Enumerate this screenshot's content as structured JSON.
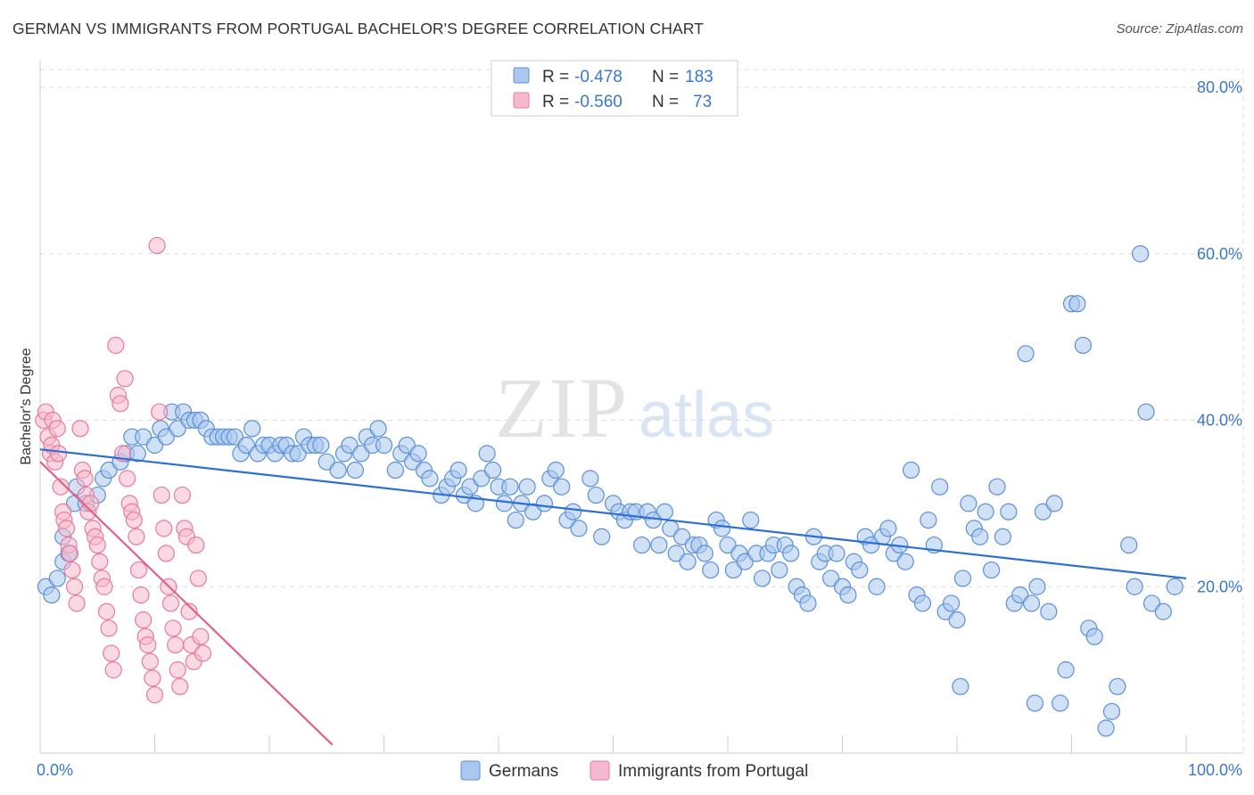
{
  "title": "GERMAN VS IMMIGRANTS FROM PORTUGAL BACHELOR'S DEGREE CORRELATION CHART",
  "source": "Source: ZipAtlas.com",
  "watermark": {
    "zip": "ZIP",
    "atlas": "atlas"
  },
  "colors": {
    "blue": "#5b8fd6",
    "blue_fill": "#aac8ee",
    "blue_line": "#2e6fd1",
    "pink": "#e8799d",
    "pink_fill": "#f6b9cc",
    "pink_line": "#e0608a",
    "axis_label": "#3a78c9",
    "grid": "#dddddd",
    "text": "#333333"
  },
  "legend_top": [
    {
      "r_label": "R =",
      "r_value": "-0.478",
      "n_label": "N =",
      "n_value": "183",
      "series": "blue"
    },
    {
      "r_label": "R =",
      "r_value": "-0.560",
      "n_label": "N =",
      "n_value": "73",
      "series": "pink"
    }
  ],
  "legend_bottom": [
    {
      "label": "Germans",
      "series": "blue"
    },
    {
      "label": "Immigrants from Portugal",
      "series": "pink"
    }
  ],
  "chart_data": {
    "type": "scatter",
    "title": "GERMAN VS IMMIGRANTS FROM PORTUGAL BACHELOR'S DEGREE CORRELATION CHART",
    "xlabel": "",
    "ylabel": "Bachelor's Degree",
    "xlim": [
      0,
      100
    ],
    "ylim": [
      0,
      83
    ],
    "x_tick_labels": [
      {
        "value": 0,
        "label": "0.0%"
      },
      {
        "value": 100,
        "label": "100.0%"
      }
    ],
    "y_tick_labels": [
      {
        "value": 20,
        "label": "20.0%"
      },
      {
        "value": 40,
        "label": "40.0%"
      },
      {
        "value": 60,
        "label": "60.0%"
      },
      {
        "value": 80,
        "label": "80.0%"
      }
    ],
    "x_minor_ticks": [
      0,
      10,
      20,
      30,
      40,
      50,
      60,
      70,
      80,
      90,
      100
    ],
    "series": [
      {
        "name": "Germans",
        "color": "blue",
        "trend": {
          "x": [
            0,
            100
          ],
          "y": [
            36.5,
            21.0
          ]
        },
        "points": [
          [
            0.5,
            20
          ],
          [
            1,
            19
          ],
          [
            1.5,
            21
          ],
          [
            2,
            26
          ],
          [
            2,
            23
          ],
          [
            2.5,
            24
          ],
          [
            3,
            30
          ],
          [
            3.2,
            32
          ],
          [
            4,
            30
          ],
          [
            5,
            31
          ],
          [
            5.5,
            33
          ],
          [
            6,
            34
          ],
          [
            7,
            35
          ],
          [
            7.5,
            36
          ],
          [
            8,
            38
          ],
          [
            8.5,
            36
          ],
          [
            9,
            38
          ],
          [
            10,
            37
          ],
          [
            10.5,
            39
          ],
          [
            11,
            38
          ],
          [
            11.5,
            41
          ],
          [
            12,
            39
          ],
          [
            12.5,
            41
          ],
          [
            13,
            40
          ],
          [
            13.5,
            40
          ],
          [
            14,
            40
          ],
          [
            14.5,
            39
          ],
          [
            15,
            38
          ],
          [
            15.5,
            38
          ],
          [
            16,
            38
          ],
          [
            16.5,
            38
          ],
          [
            17,
            38
          ],
          [
            17.5,
            36
          ],
          [
            18,
            37
          ],
          [
            18.5,
            39
          ],
          [
            19,
            36
          ],
          [
            19.5,
            37
          ],
          [
            20,
            37
          ],
          [
            20.5,
            36
          ],
          [
            21,
            37
          ],
          [
            21.5,
            37
          ],
          [
            22,
            36
          ],
          [
            22.5,
            36
          ],
          [
            23,
            38
          ],
          [
            23.5,
            37
          ],
          [
            24,
            37
          ],
          [
            24.5,
            37
          ],
          [
            25,
            35
          ],
          [
            26,
            34
          ],
          [
            26.5,
            36
          ],
          [
            27,
            37
          ],
          [
            27.5,
            34
          ],
          [
            28,
            36
          ],
          [
            28.5,
            38
          ],
          [
            29,
            37
          ],
          [
            29.5,
            39
          ],
          [
            30,
            37
          ],
          [
            31,
            34
          ],
          [
            31.5,
            36
          ],
          [
            32,
            37
          ],
          [
            32.5,
            35
          ],
          [
            33,
            36
          ],
          [
            33.5,
            34
          ],
          [
            34,
            33
          ],
          [
            35,
            31
          ],
          [
            35.5,
            32
          ],
          [
            36,
            33
          ],
          [
            36.5,
            34
          ],
          [
            37,
            31
          ],
          [
            37.5,
            32
          ],
          [
            38,
            30
          ],
          [
            38.5,
            33
          ],
          [
            39,
            36
          ],
          [
            39.5,
            34
          ],
          [
            40,
            32
          ],
          [
            40.5,
            30
          ],
          [
            41,
            32
          ],
          [
            41.5,
            28
          ],
          [
            42,
            30
          ],
          [
            42.5,
            32
          ],
          [
            43,
            29
          ],
          [
            44,
            30
          ],
          [
            44.5,
            33
          ],
          [
            45,
            34
          ],
          [
            45.5,
            32
          ],
          [
            46,
            28
          ],
          [
            46.5,
            29
          ],
          [
            47,
            27
          ],
          [
            48,
            33
          ],
          [
            48.5,
            31
          ],
          [
            49,
            26
          ],
          [
            50,
            30
          ],
          [
            50.5,
            29
          ],
          [
            51,
            28
          ],
          [
            51.5,
            29
          ],
          [
            52,
            29
          ],
          [
            52.5,
            25
          ],
          [
            53,
            29
          ],
          [
            53.5,
            28
          ],
          [
            54,
            25
          ],
          [
            54.5,
            29
          ],
          [
            55,
            27
          ],
          [
            55.5,
            24
          ],
          [
            56,
            26
          ],
          [
            56.5,
            23
          ],
          [
            57,
            25
          ],
          [
            57.5,
            25
          ],
          [
            58,
            24
          ],
          [
            58.5,
            22
          ],
          [
            59,
            28
          ],
          [
            59.5,
            27
          ],
          [
            60,
            25
          ],
          [
            60.5,
            22
          ],
          [
            61,
            24
          ],
          [
            61.5,
            23
          ],
          [
            62,
            28
          ],
          [
            62.5,
            24
          ],
          [
            63,
            21
          ],
          [
            63.5,
            24
          ],
          [
            64,
            25
          ],
          [
            64.5,
            22
          ],
          [
            65,
            25
          ],
          [
            65.5,
            24
          ],
          [
            66,
            20
          ],
          [
            66.5,
            19
          ],
          [
            67,
            18
          ],
          [
            67.5,
            26
          ],
          [
            68,
            23
          ],
          [
            68.5,
            24
          ],
          [
            69,
            21
          ],
          [
            69.5,
            24
          ],
          [
            70,
            20
          ],
          [
            70.5,
            19
          ],
          [
            71,
            23
          ],
          [
            71.5,
            22
          ],
          [
            72,
            26
          ],
          [
            72.5,
            25
          ],
          [
            73,
            20
          ],
          [
            73.5,
            26
          ],
          [
            74,
            27
          ],
          [
            74.5,
            24
          ],
          [
            75,
            25
          ],
          [
            75.5,
            23
          ],
          [
            76,
            34
          ],
          [
            76.5,
            19
          ],
          [
            77,
            18
          ],
          [
            77.5,
            28
          ],
          [
            78,
            25
          ],
          [
            78.5,
            32
          ],
          [
            79,
            17
          ],
          [
            79.5,
            18
          ],
          [
            80,
            16
          ],
          [
            80.5,
            21
          ],
          [
            81,
            30
          ],
          [
            81.5,
            27
          ],
          [
            82,
            26
          ],
          [
            82.5,
            29
          ],
          [
            83,
            22
          ],
          [
            83.5,
            32
          ],
          [
            84,
            26
          ],
          [
            84.5,
            29
          ],
          [
            85,
            18
          ],
          [
            85.5,
            19
          ],
          [
            86,
            48
          ],
          [
            86.5,
            18
          ],
          [
            87,
            20
          ],
          [
            87.5,
            29
          ],
          [
            88,
            17
          ],
          [
            88.5,
            30
          ],
          [
            89,
            6
          ],
          [
            89.5,
            10
          ],
          [
            90,
            54
          ],
          [
            90.5,
            54
          ],
          [
            91,
            49
          ],
          [
            91.5,
            15
          ],
          [
            92,
            14
          ],
          [
            93,
            3
          ],
          [
            93.5,
            5
          ],
          [
            94,
            8
          ],
          [
            95,
            25
          ],
          [
            95.5,
            20
          ],
          [
            96,
            60
          ],
          [
            96.5,
            41
          ],
          [
            97,
            18
          ],
          [
            98,
            17
          ],
          [
            99,
            20
          ],
          [
            80.3,
            8
          ],
          [
            86.8,
            6
          ]
        ]
      },
      {
        "name": "Immigrants from Portugal",
        "color": "pink",
        "trend": {
          "x": [
            0,
            25.5
          ],
          "y": [
            35,
            1
          ]
        },
        "points": [
          [
            0.3,
            40
          ],
          [
            0.5,
            41
          ],
          [
            0.7,
            38
          ],
          [
            0.9,
            36
          ],
          [
            1,
            37
          ],
          [
            1.1,
            40
          ],
          [
            1.3,
            35
          ],
          [
            1.5,
            39
          ],
          [
            1.6,
            36
          ],
          [
            1.8,
            32
          ],
          [
            2,
            29
          ],
          [
            2.1,
            28
          ],
          [
            2.3,
            27
          ],
          [
            2.5,
            25
          ],
          [
            2.6,
            24
          ],
          [
            2.8,
            22
          ],
          [
            3,
            20
          ],
          [
            3.2,
            18
          ],
          [
            3.5,
            39
          ],
          [
            3.7,
            34
          ],
          [
            3.9,
            33
          ],
          [
            4,
            31
          ],
          [
            4.2,
            29
          ],
          [
            4.4,
            30
          ],
          [
            4.6,
            27
          ],
          [
            4.8,
            26
          ],
          [
            5,
            25
          ],
          [
            5.2,
            23
          ],
          [
            5.4,
            21
          ],
          [
            5.6,
            20
          ],
          [
            5.8,
            17
          ],
          [
            6,
            15
          ],
          [
            6.2,
            12
          ],
          [
            6.4,
            10
          ],
          [
            6.6,
            49
          ],
          [
            6.8,
            43
          ],
          [
            7,
            42
          ],
          [
            7.2,
            36
          ],
          [
            7.4,
            45
          ],
          [
            7.6,
            33
          ],
          [
            7.8,
            30
          ],
          [
            8,
            29
          ],
          [
            8.2,
            28
          ],
          [
            8.4,
            26
          ],
          [
            8.6,
            22
          ],
          [
            8.8,
            19
          ],
          [
            9,
            16
          ],
          [
            9.2,
            14
          ],
          [
            9.4,
            13
          ],
          [
            9.6,
            11
          ],
          [
            9.8,
            9
          ],
          [
            10,
            7
          ],
          [
            10.2,
            61
          ],
          [
            10.4,
            41
          ],
          [
            10.6,
            31
          ],
          [
            10.8,
            27
          ],
          [
            11,
            24
          ],
          [
            11.2,
            20
          ],
          [
            11.4,
            18
          ],
          [
            11.6,
            15
          ],
          [
            11.8,
            13
          ],
          [
            12,
            10
          ],
          [
            12.2,
            8
          ],
          [
            12.4,
            31
          ],
          [
            12.6,
            27
          ],
          [
            12.8,
            26
          ],
          [
            13,
            17
          ],
          [
            13.2,
            13
          ],
          [
            13.4,
            11
          ],
          [
            13.6,
            25
          ],
          [
            13.8,
            21
          ],
          [
            14,
            14
          ],
          [
            14.2,
            12
          ]
        ]
      }
    ]
  }
}
